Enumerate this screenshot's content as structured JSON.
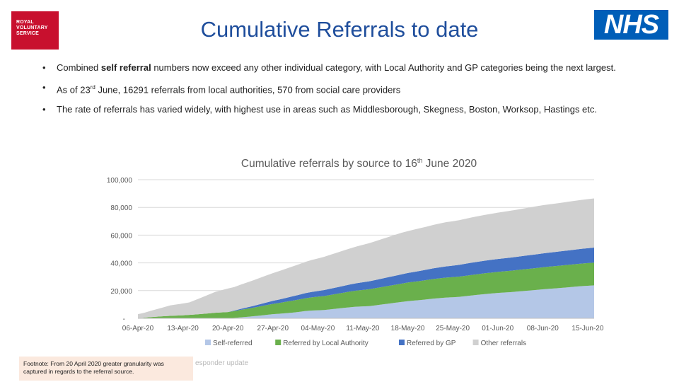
{
  "header": {
    "rvs_logo_text": [
      "ROYAL",
      "VOLUNTARY",
      "SERVICE"
    ],
    "nhs_logo_text": "NHS",
    "title": "Cumulative Referrals to date"
  },
  "bullets": [
    {
      "pre": "Combined ",
      "bold": "self referral",
      "post": " numbers now exceed any other individual category, with Local Authority and GP categories being the next largest."
    },
    {
      "pre": "As of 23",
      "sup": "rd",
      "post": " June, 16291 referrals from local authorities, 570 from social care providers"
    },
    {
      "pre": "The rate of referrals has varied widely, with highest use in areas such as Middlesborough, Skegness, Boston, Worksop, Hastings etc."
    }
  ],
  "footnote": "Footnote: From 20 April 2020 greater granularity was captured in regards to the referral source.",
  "ghost_text": "esponder update",
  "chart_data": {
    "type": "area",
    "stacked": true,
    "title": "Cumulative referrals by source to 16th June 2020",
    "title_parts": {
      "pre": "Cumulative referrals by source to 16",
      "sup": "th",
      "post": " June 2020"
    },
    "x_tick_labels": [
      "06-Apr-20",
      "13-Apr-20",
      "20-Apr-20",
      "27-Apr-20",
      "04-May-20",
      "11-May-20",
      "18-May-20",
      "25-May-20",
      "01-Jun-20",
      "08-Jun-20",
      "15-Jun-20"
    ],
    "y_tick_labels": [
      "-",
      "20,000",
      "40,000",
      "60,000",
      "80,000",
      "100,000"
    ],
    "ylim": [
      0,
      100000
    ],
    "grid": true,
    "legend_position": "bottom",
    "x_days": [
      0,
      1,
      2,
      3,
      4,
      5,
      6,
      7,
      8,
      9,
      10,
      11,
      12,
      13,
      14,
      15,
      16,
      17,
      18,
      19,
      20,
      21,
      22,
      23,
      24,
      25,
      26,
      27,
      28,
      29,
      30,
      31,
      32,
      33,
      34,
      35,
      36,
      37,
      38,
      39,
      40,
      41,
      42,
      43,
      44,
      45,
      46,
      47,
      48,
      49,
      50,
      51,
      52,
      53,
      54,
      55,
      56,
      57,
      58,
      59,
      60,
      61,
      62,
      63,
      64,
      65,
      66,
      67,
      68,
      69,
      70,
      71
    ],
    "series": [
      {
        "name": "Self-referred",
        "color": "#b4c7e7",
        "values": [
          0,
          0,
          0,
          0,
          0,
          0,
          0,
          0,
          0,
          0,
          0,
          0,
          0,
          0,
          0,
          300,
          700,
          1100,
          1500,
          2000,
          2500,
          3000,
          3300,
          3700,
          4100,
          4600,
          5200,
          5600,
          5800,
          6000,
          6500,
          7000,
          7500,
          8000,
          8400,
          8600,
          8800,
          9400,
          10000,
          10600,
          11200,
          11800,
          12400,
          12800,
          13200,
          13700,
          14200,
          14600,
          15000,
          15200,
          15500,
          16000,
          16500,
          17000,
          17500,
          17900,
          18300,
          18600,
          18900,
          19300,
          19700,
          20100,
          20500,
          20900,
          21300,
          21600,
          22000,
          22400,
          22800,
          23200,
          23500,
          23800
        ]
      },
      {
        "name": "Referred by Local Authority",
        "color": "#6ab04c",
        "values": [
          0,
          500,
          900,
          1200,
          1500,
          1800,
          2000,
          2200,
          2500,
          2800,
          3200,
          3600,
          4000,
          4300,
          4500,
          4900,
          5400,
          5800,
          6200,
          6600,
          7000,
          7400,
          7800,
          8200,
          8600,
          8900,
          9200,
          9500,
          9800,
          10100,
          10400,
          10700,
          11000,
          11300,
          11600,
          11900,
          12200,
          12400,
          12600,
          12800,
          13000,
          13200,
          13400,
          13600,
          13800,
          14000,
          14200,
          14300,
          14400,
          14500,
          14600,
          14700,
          14800,
          14900,
          15000,
          15100,
          15200,
          15300,
          15400,
          15500,
          15600,
          15700,
          15800,
          15900,
          16000,
          16100,
          16150,
          16200,
          16250,
          16300,
          16350,
          16400
        ]
      },
      {
        "name": "Referred by GP",
        "color": "#4472c4",
        "values": [
          0,
          0,
          0,
          0,
          0,
          0,
          0,
          0,
          0,
          0,
          0,
          0,
          0,
          0,
          0,
          400,
          700,
          1000,
          1300,
          1600,
          1900,
          2200,
          2500,
          2800,
          3100,
          3400,
          3700,
          3900,
          4100,
          4300,
          4500,
          4700,
          4900,
          5100,
          5300,
          5500,
          5700,
          5900,
          6100,
          6300,
          6500,
          6700,
          6900,
          7100,
          7300,
          7500,
          7700,
          7900,
          8100,
          8300,
          8500,
          8700,
          8900,
          9000,
          9100,
          9200,
          9300,
          9400,
          9500,
          9600,
          9700,
          9800,
          9900,
          10000,
          10100,
          10200,
          10300,
          10400,
          10500,
          10600,
          10700,
          10800
        ]
      },
      {
        "name": "Other referrals",
        "color": "#d0d0d0",
        "values": [
          3000,
          3500,
          4500,
          5500,
          6500,
          7500,
          8000,
          8500,
          9000,
          10500,
          12000,
          13500,
          15000,
          16000,
          17000,
          17000,
          17500,
          18000,
          18500,
          19000,
          19500,
          20000,
          20500,
          21000,
          21500,
          22000,
          22500,
          23000,
          23500,
          24000,
          24500,
          25000,
          25500,
          26000,
          26500,
          27000,
          27500,
          28000,
          28500,
          29000,
          29500,
          30000,
          30200,
          30500,
          30800,
          31000,
          31300,
          31600,
          31900,
          32000,
          32200,
          32400,
          32600,
          32800,
          33000,
          33200,
          33400,
          33600,
          33800,
          34000,
          34200,
          34400,
          34600,
          34800,
          34800,
          34900,
          35000,
          35100,
          35200,
          35300,
          35400,
          35500
        ]
      }
    ]
  }
}
